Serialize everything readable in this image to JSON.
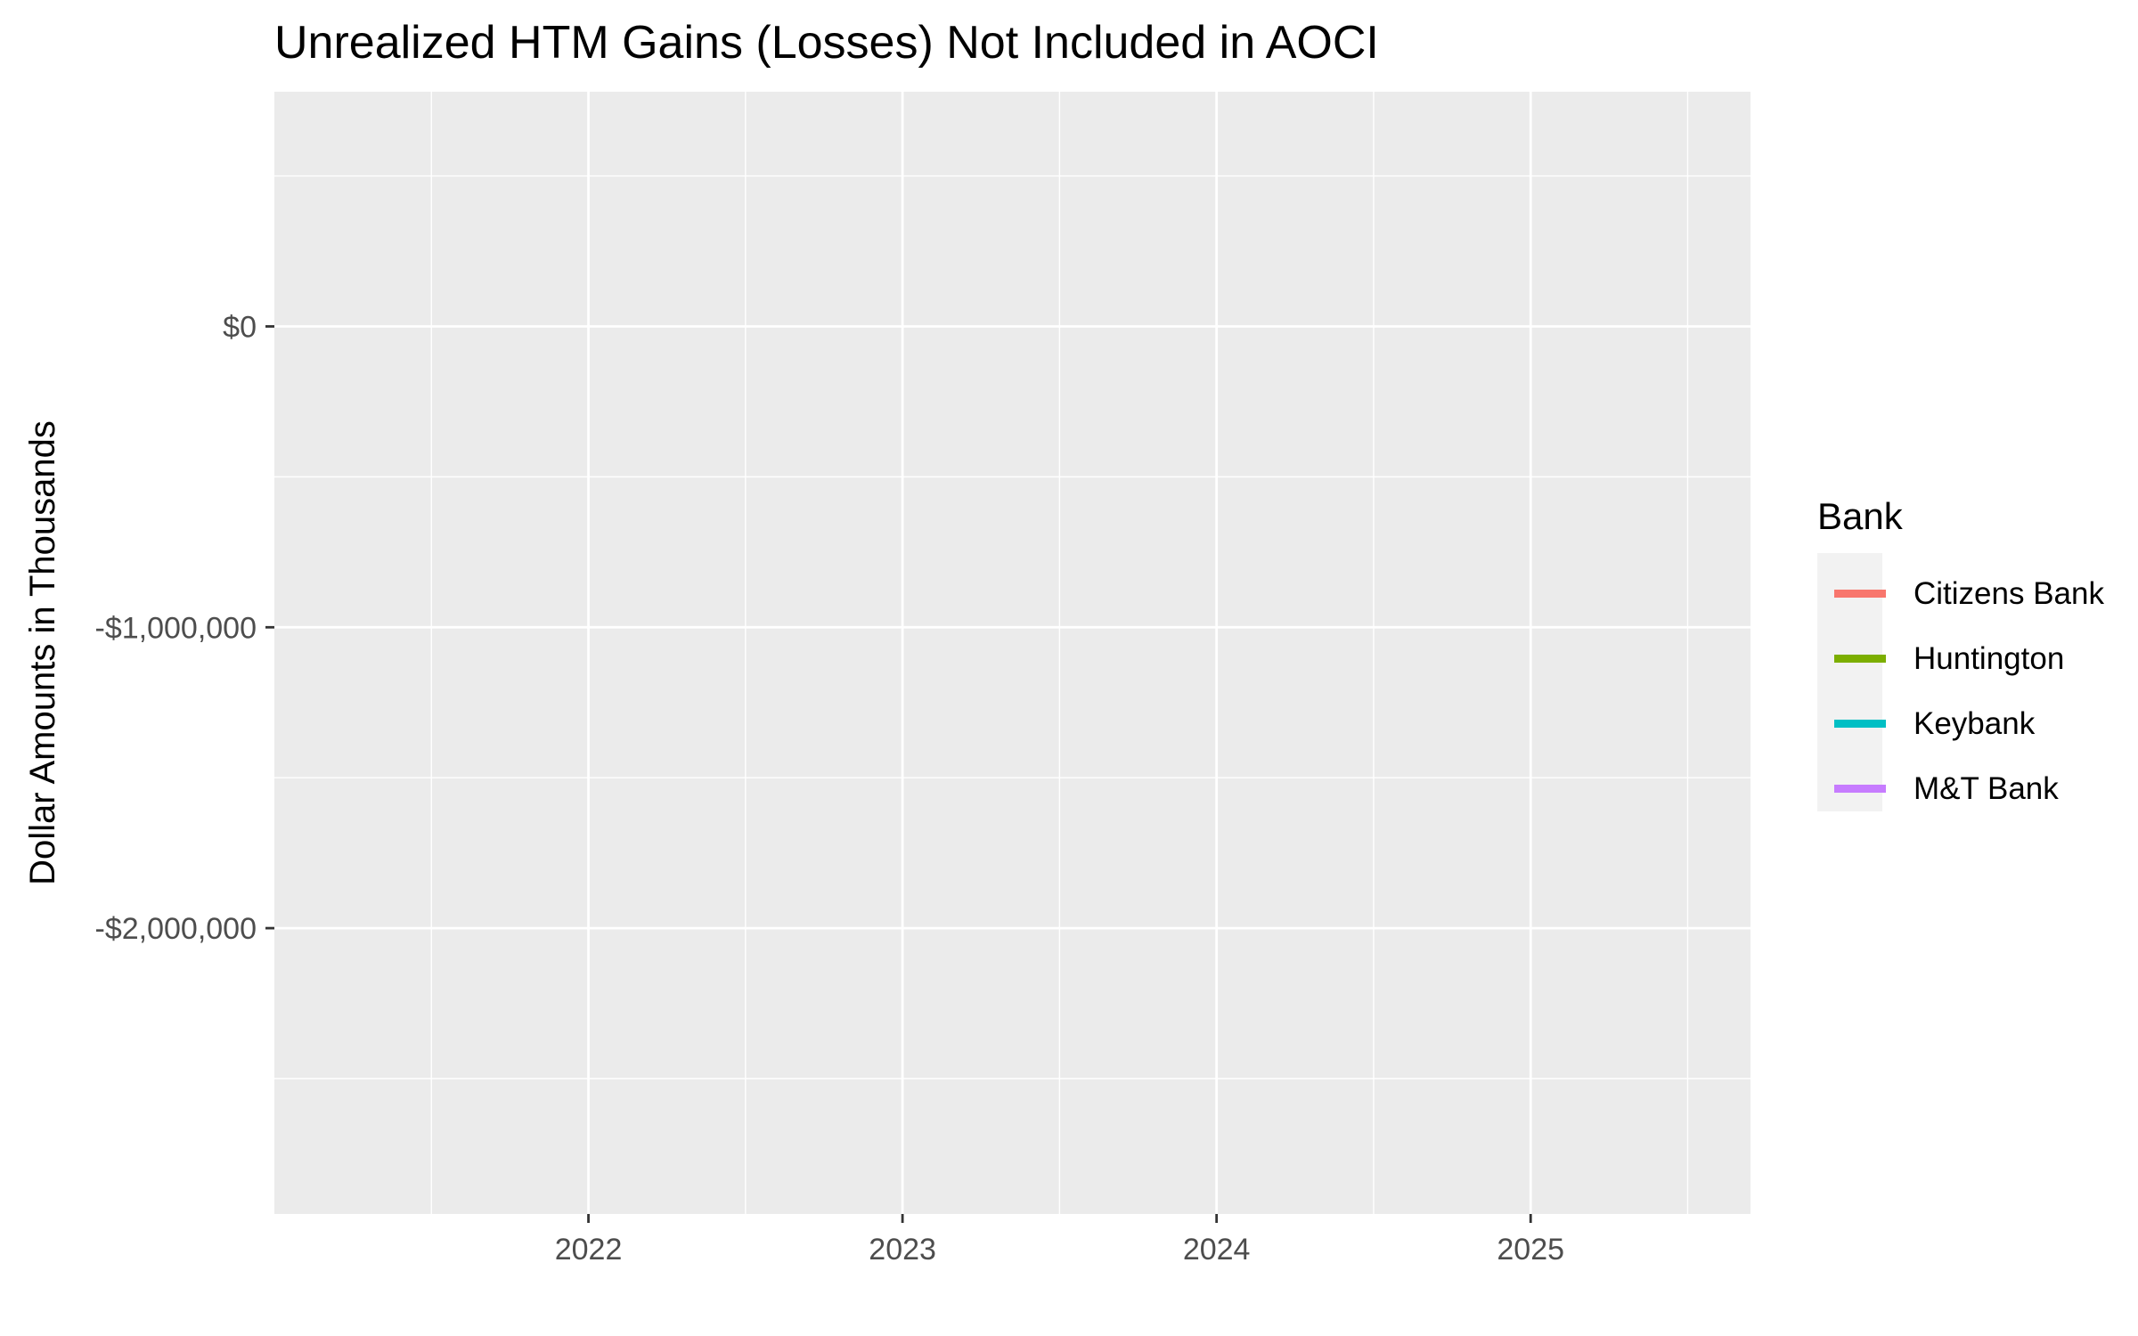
{
  "chart_data": {
    "type": "line",
    "title": "Unrealized HTM Gains (Losses) Not Included in AOCI",
    "xlabel": "",
    "ylabel": "Dollar Amounts in Thousands",
    "x_ticks": [
      2022,
      2023,
      2024,
      2025
    ],
    "y_ticks": [
      {
        "value": 0,
        "label": "$0"
      },
      {
        "value": -1000000,
        "label": "-$1,000,000"
      },
      {
        "value": -2000000,
        "label": "-$2,000,000"
      }
    ],
    "xlim": [
      2021.0,
      2025.7
    ],
    "ylim": [
      -2950000,
      780000
    ],
    "grid": true,
    "legend": {
      "title": "Bank",
      "position": "right"
    },
    "series": [
      {
        "name": "Citizens Bank",
        "color": "#F8766D",
        "x": [],
        "y": []
      },
      {
        "name": "Huntington",
        "color": "#7CAE00",
        "x": [],
        "y": []
      },
      {
        "name": "Keybank",
        "color": "#00BFC4",
        "x": [],
        "y": []
      },
      {
        "name": "M&T Bank",
        "color": "#C77CFF",
        "x": [],
        "y": []
      }
    ]
  }
}
